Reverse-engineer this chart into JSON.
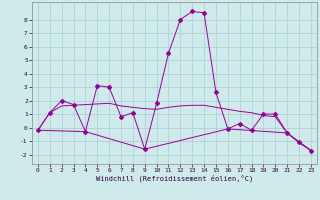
{
  "xlabel": "Windchill (Refroidissement éolien,°C)",
  "background_color": "#ceeaea",
  "line_color": "#990099",
  "grid_color": "#aacccc",
  "xlim": [
    -0.5,
    23.5
  ],
  "ylim": [
    -2.7,
    9.3
  ],
  "yticks": [
    -2,
    -1,
    0,
    1,
    2,
    3,
    4,
    5,
    6,
    7,
    8
  ],
  "xticks": [
    0,
    1,
    2,
    3,
    4,
    5,
    6,
    7,
    8,
    9,
    10,
    11,
    12,
    13,
    14,
    15,
    16,
    17,
    18,
    19,
    20,
    21,
    22,
    23
  ],
  "series1": [
    [
      0,
      -0.2
    ],
    [
      1,
      1.1
    ],
    [
      2,
      2.0
    ],
    [
      3,
      1.7
    ],
    [
      4,
      -0.3
    ],
    [
      5,
      3.1
    ],
    [
      6,
      3.0
    ],
    [
      7,
      0.8
    ],
    [
      8,
      1.1
    ],
    [
      9,
      -1.6
    ],
    [
      10,
      1.8
    ],
    [
      11,
      5.5
    ],
    [
      12,
      8.0
    ],
    [
      13,
      8.6
    ],
    [
      14,
      8.5
    ],
    [
      15,
      2.6
    ],
    [
      16,
      -0.1
    ],
    [
      17,
      0.3
    ],
    [
      18,
      -0.2
    ],
    [
      19,
      1.0
    ],
    [
      20,
      1.0
    ],
    [
      21,
      -0.4
    ],
    [
      22,
      -1.1
    ],
    [
      23,
      -1.7
    ]
  ],
  "series2": [
    [
      0,
      -0.2
    ],
    [
      1,
      1.1
    ],
    [
      2,
      1.6
    ],
    [
      3,
      1.65
    ],
    [
      4,
      1.7
    ],
    [
      5,
      1.75
    ],
    [
      6,
      1.8
    ],
    [
      7,
      1.6
    ],
    [
      8,
      1.5
    ],
    [
      9,
      1.4
    ],
    [
      10,
      1.35
    ],
    [
      11,
      1.5
    ],
    [
      12,
      1.6
    ],
    [
      13,
      1.65
    ],
    [
      14,
      1.65
    ],
    [
      15,
      1.5
    ],
    [
      16,
      1.35
    ],
    [
      17,
      1.2
    ],
    [
      18,
      1.1
    ],
    [
      19,
      0.9
    ],
    [
      20,
      0.8
    ],
    [
      21,
      -0.4
    ],
    [
      22,
      -1.1
    ],
    [
      23,
      -1.7
    ]
  ],
  "series3": [
    [
      0,
      -0.2
    ],
    [
      4,
      -0.3
    ],
    [
      9,
      -1.6
    ],
    [
      16,
      -0.1
    ],
    [
      21,
      -0.4
    ],
    [
      23,
      -1.7
    ]
  ]
}
